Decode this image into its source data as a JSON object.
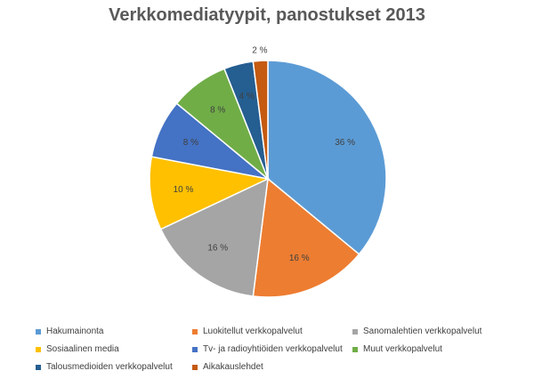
{
  "chart_data": {
    "type": "pie",
    "title": "Verkkomediatyypit, panostukset 2013",
    "slices": [
      {
        "name": "Hakumainonta",
        "value": 36,
        "label": "36 %",
        "color": "#5B9BD5"
      },
      {
        "name": "Luokitellut verkkopalvelut",
        "value": 16,
        "label": "16 %",
        "color": "#ED7D31"
      },
      {
        "name": "Sanomalehtien verkkopalvelut",
        "value": 16,
        "label": "16 %",
        "color": "#A5A5A5"
      },
      {
        "name": "Sosiaalinen media",
        "value": 10,
        "label": "10 %",
        "color": "#FFC000"
      },
      {
        "name": "Tv- ja radioyhtiöiden verkkopalvelut",
        "value": 8,
        "label": "8 %",
        "color": "#4472C4"
      },
      {
        "name": "Muut verkkopalvelut",
        "value": 8,
        "label": "8 %",
        "color": "#70AD47"
      },
      {
        "name": "Talousmedioiden verkkopalvelut",
        "value": 4,
        "label": "4 %",
        "color": "#255E91"
      },
      {
        "name": "Aikakauslehdet",
        "value": 2,
        "label": "2 %",
        "color": "#C55A11"
      }
    ],
    "legend_position": "bottom"
  }
}
